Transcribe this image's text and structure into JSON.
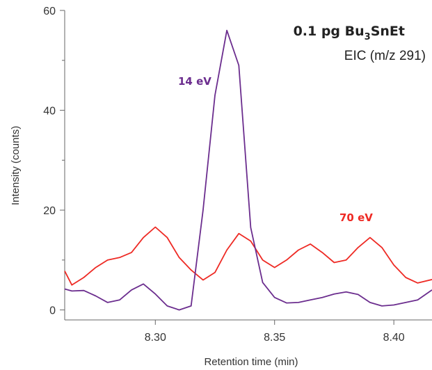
{
  "chart_data": {
    "type": "line",
    "title": "0.1 pg Bu",
    "title_subscript": "3",
    "title_suffix": "SnEt",
    "subtitle": "EIC (m/z 291)",
    "xlabel": "Retention time (min)",
    "ylabel": "Intensity (counts)",
    "xlim": [
      8.262,
      8.416
    ],
    "ylim": [
      -2,
      60
    ],
    "xticks": [
      8.3,
      8.35,
      8.4
    ],
    "xtick_labels": [
      "8.30",
      "8.35",
      "8.40"
    ],
    "yticks": [
      0,
      20,
      40,
      60
    ],
    "ytick_labels": [
      "0",
      "20",
      "40",
      "60"
    ],
    "grid": false,
    "series": [
      {
        "name": "14 eV",
        "color": "#6b2d8e",
        "x": [
          8.262,
          8.265,
          8.27,
          8.275,
          8.28,
          8.285,
          8.29,
          8.295,
          8.3,
          8.305,
          8.31,
          8.315,
          8.32,
          8.325,
          8.33,
          8.335,
          8.34,
          8.345,
          8.35,
          8.355,
          8.36,
          8.365,
          8.37,
          8.375,
          8.38,
          8.385,
          8.39,
          8.395,
          8.4,
          8.405,
          8.41,
          8.416
        ],
        "y": [
          4.2,
          3.8,
          3.9,
          2.8,
          1.5,
          2.0,
          4.0,
          5.2,
          3.2,
          0.8,
          0.0,
          0.8,
          20.0,
          43.0,
          56.0,
          49.0,
          16.5,
          5.5,
          2.5,
          1.4,
          1.5,
          2.0,
          2.5,
          3.2,
          3.6,
          3.1,
          1.5,
          0.8,
          1.0,
          1.5,
          2.0,
          4.0
        ]
      },
      {
        "name": "70 eV",
        "color": "#ee2a24",
        "x": [
          8.262,
          8.265,
          8.27,
          8.275,
          8.28,
          8.285,
          8.29,
          8.295,
          8.3,
          8.305,
          8.31,
          8.315,
          8.32,
          8.325,
          8.33,
          8.335,
          8.34,
          8.345,
          8.35,
          8.355,
          8.36,
          8.365,
          8.37,
          8.375,
          8.38,
          8.385,
          8.39,
          8.395,
          8.4,
          8.405,
          8.41,
          8.416
        ],
        "y": [
          7.8,
          5.0,
          6.5,
          8.5,
          10.0,
          10.5,
          11.5,
          14.5,
          16.6,
          14.5,
          10.5,
          8.0,
          6.0,
          7.5,
          12.0,
          15.3,
          13.8,
          10.0,
          8.5,
          10.0,
          12.0,
          13.2,
          11.5,
          9.5,
          10.0,
          12.5,
          14.5,
          12.5,
          9.0,
          6.5,
          5.4,
          6.1
        ]
      }
    ]
  }
}
